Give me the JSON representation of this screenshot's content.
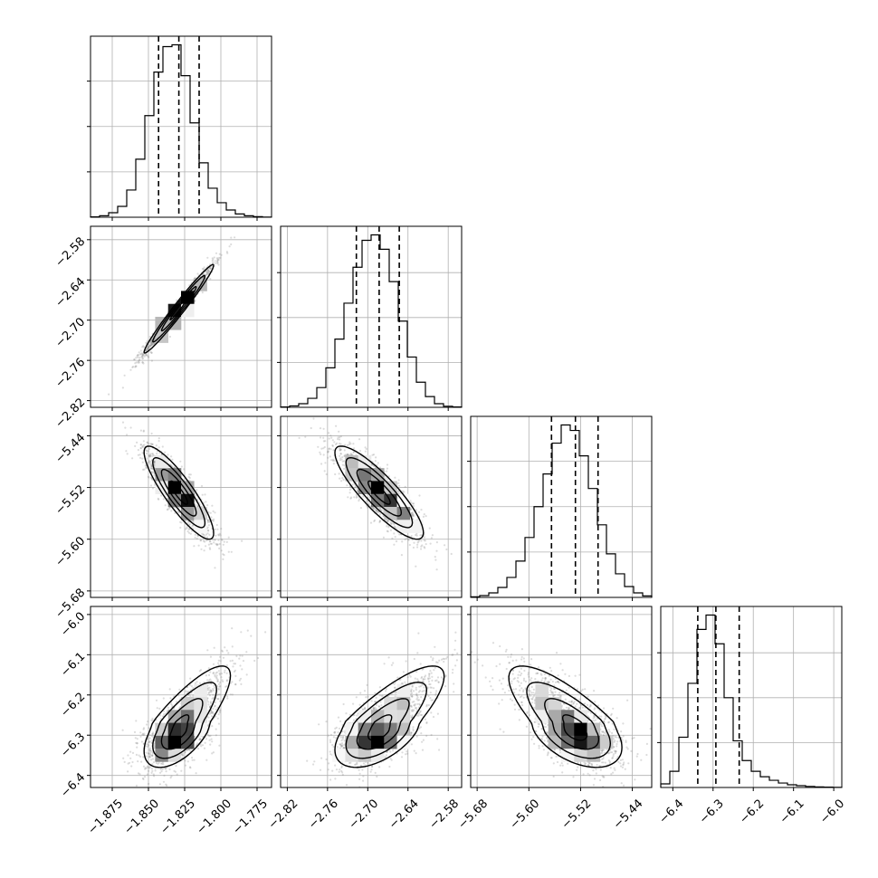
{
  "chart_data": {
    "type": "corner",
    "grid": true,
    "colors": {
      "scatter": "#808080",
      "line": "#000000",
      "grid": "#b0b0b0"
    },
    "parameters": [
      {
        "range": [
          -1.89,
          -1.765
        ],
        "mean": -1.829,
        "sd": 0.012,
        "q16": -1.843,
        "q50": -1.829,
        "q84": -1.815,
        "ticks": [
          -1.875,
          -1.85,
          -1.825,
          -1.8,
          -1.775
        ],
        "tick_labels": [
          "−1.875",
          "−1.850",
          "−1.825",
          "−1.800",
          "−1.775"
        ]
      },
      {
        "range": [
          -2.83,
          -2.56
        ],
        "mean": -2.683,
        "sd": 0.033,
        "q16": -2.717,
        "q50": -2.683,
        "q84": -2.653,
        "ticks": [
          -2.82,
          -2.76,
          -2.7,
          -2.64,
          -2.58
        ],
        "tick_labels": [
          "−2.82",
          "−2.76",
          "−2.70",
          "−2.64",
          "−2.58"
        ]
      },
      {
        "range": [
          -5.69,
          -5.41
        ],
        "mean": -5.528,
        "sd": 0.036,
        "q16": -5.565,
        "q50": -5.528,
        "q84": -5.493,
        "ticks": [
          -5.68,
          -5.6,
          -5.52,
          -5.44
        ],
        "tick_labels": [
          "−5.68",
          "−5.60",
          "−5.52",
          "−5.44"
        ]
      },
      {
        "range": [
          -6.43,
          -5.98
        ],
        "mean": -6.29,
        "sd": 0.045,
        "q16": -6.338,
        "q50": -6.293,
        "q84": -6.235,
        "ticks": [
          -6.4,
          -6.3,
          -6.2,
          -6.1,
          -6.0
        ],
        "tick_labels": [
          "−6.4",
          "−6.3",
          "−6.2",
          "−6.1",
          "−6.0"
        ]
      }
    ],
    "histograms": [
      {
        "bins": [
          -1.89,
          -1.88375,
          -1.8775,
          -1.87125,
          -1.865,
          -1.85875,
          -1.8525,
          -1.84625,
          -1.84,
          -1.83375,
          -1.8275,
          -1.82125,
          -1.815,
          -1.80875,
          -1.8025,
          -1.79625,
          -1.79,
          -1.78375,
          -1.7775,
          -1.77125,
          -1.765
        ],
        "counts": [
          2,
          8,
          25,
          60,
          150,
          320,
          560,
          800,
          940,
          950,
          780,
          520,
          300,
          160,
          80,
          40,
          18,
          8,
          3,
          1
        ]
      },
      {
        "bins": [
          -2.83,
          -2.8165,
          -2.803,
          -2.7895,
          -2.776,
          -2.7625,
          -2.749,
          -2.7355,
          -2.722,
          -2.7085,
          -2.695,
          -2.6815,
          -2.668,
          -2.6545,
          -2.641,
          -2.6275,
          -2.614,
          -2.6005,
          -2.587,
          -2.5735,
          -2.56
        ],
        "counts": [
          2,
          8,
          20,
          50,
          110,
          220,
          380,
          580,
          780,
          930,
          960,
          880,
          700,
          480,
          280,
          140,
          60,
          20,
          6,
          2
        ]
      },
      {
        "bins": [
          -5.69,
          -5.676,
          -5.662,
          -5.648,
          -5.634,
          -5.62,
          -5.606,
          -5.592,
          -5.578,
          -5.564,
          -5.55,
          -5.536,
          -5.522,
          -5.508,
          -5.494,
          -5.48,
          -5.466,
          -5.452,
          -5.438,
          -5.424,
          -5.41
        ],
        "counts": [
          3,
          10,
          25,
          55,
          110,
          200,
          330,
          500,
          680,
          850,
          950,
          920,
          780,
          600,
          400,
          240,
          130,
          60,
          25,
          8
        ]
      },
      {
        "bins": [
          -6.43,
          -6.4075,
          -6.385,
          -6.3625,
          -6.34,
          -6.3175,
          -6.295,
          -6.2725,
          -6.25,
          -6.2275,
          -6.205,
          -6.1825,
          -6.16,
          -6.1375,
          -6.115,
          -6.0925,
          -6.07,
          -6.0475,
          -6.025,
          -6.0025,
          -5.98
        ],
        "counts": [
          20,
          90,
          280,
          580,
          880,
          960,
          800,
          500,
          260,
          150,
          90,
          60,
          40,
          25,
          15,
          10,
          6,
          3,
          2,
          1
        ]
      }
    ],
    "correlations": [
      [
        1,
        0.98,
        -0.87,
        0.55
      ],
      [
        0.98,
        1,
        -0.86,
        0.52
      ],
      [
        -0.87,
        -0.86,
        1,
        -0.45
      ],
      [
        0.55,
        0.52,
        -0.45,
        1
      ]
    ],
    "contour_levels_sigma": [
      0.5,
      1.0,
      1.5,
      2.0
    ],
    "scatter_points_per_panel": 1400
  }
}
